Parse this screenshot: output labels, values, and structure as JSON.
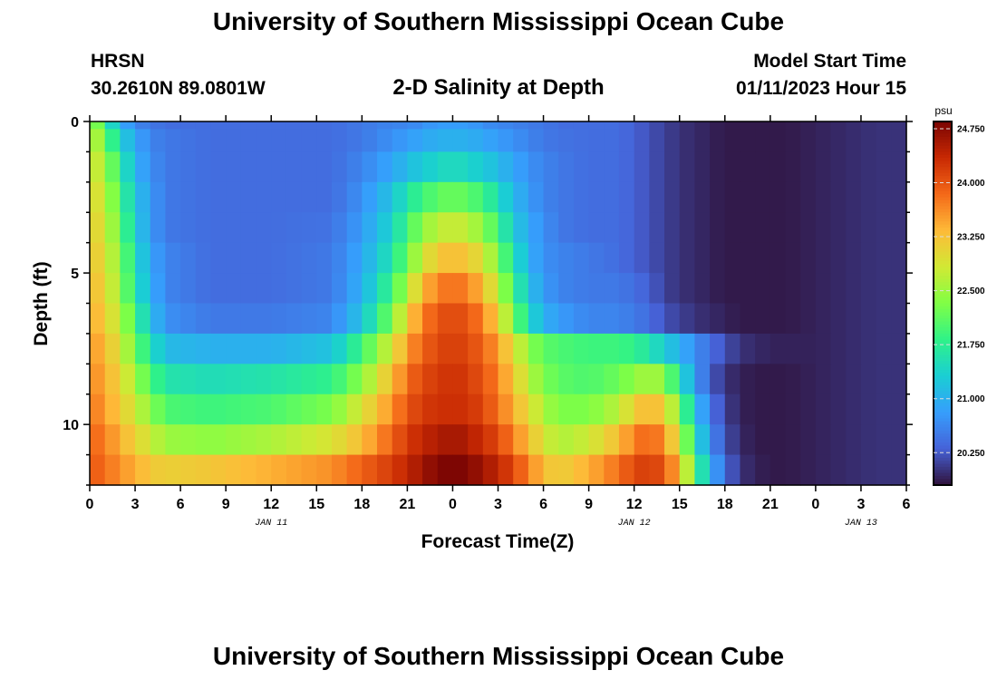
{
  "header": {
    "title": "University of Southern Mississippi Ocean Cube",
    "station": "HRSN",
    "coordinates": "30.2610N  89.0801W",
    "subtitle": "2-D Salinity at Depth",
    "model_start_label": "Model Start Time",
    "model_start_value": "01/11/2023 Hour 15"
  },
  "footer": {
    "title": "University of Southern Mississippi Ocean Cube"
  },
  "chart_data": {
    "type": "heatmap",
    "title": "2-D Salinity at Depth",
    "xlabel": "Forecast Time(Z)",
    "ylabel": "Depth (ft)",
    "x_range_hours": [
      0,
      54
    ],
    "x_tick_hours": [
      0,
      3,
      6,
      9,
      12,
      15,
      18,
      21,
      24,
      27,
      30,
      33,
      36,
      39,
      42,
      45,
      48,
      51,
      54
    ],
    "x_tick_labels": [
      "0",
      "3",
      "6",
      "9",
      "12",
      "15",
      "18",
      "21",
      "0",
      "3",
      "6",
      "9",
      "12",
      "15",
      "18",
      "21",
      "0",
      "3",
      "6"
    ],
    "date_labels": [
      {
        "hour": 12,
        "text": "JAN 11"
      },
      {
        "hour": 36,
        "text": "JAN 12"
      },
      {
        "hour": 51,
        "text": "JAN 13"
      }
    ],
    "y_range_ft": [
      0,
      12
    ],
    "y_ticks": [
      0,
      5,
      10
    ],
    "y_tick_labels": [
      "0",
      "5",
      "10"
    ],
    "colorbar": {
      "unit": "psu",
      "min": 19.8,
      "max": 24.85,
      "ticks": [
        20.25,
        21.0,
        21.75,
        22.5,
        23.25,
        24.0,
        24.75
      ],
      "tick_labels": [
        "20.250",
        "21.000",
        "21.750",
        "22.500",
        "23.250",
        "24.000",
        "24.750"
      ]
    },
    "depth_levels_ft": [
      0,
      0.5,
      1.5,
      2.5,
      3.5,
      4.5,
      5.5,
      6.5,
      7.5,
      8.5,
      9.5,
      10.5,
      11.5
    ],
    "salinity_keyframes": {
      "hours": [
        0,
        1,
        2,
        3,
        4,
        5,
        8,
        12,
        16,
        18,
        20,
        21,
        22,
        23,
        24,
        25,
        26,
        27,
        28,
        29,
        30,
        31,
        33,
        35,
        36,
        37,
        38,
        39,
        40,
        41,
        42,
        43,
        44,
        45,
        46,
        48,
        50,
        52,
        54
      ],
      "levels": [
        [
          22.7,
          21.8,
          21.0,
          20.6,
          20.5,
          20.4,
          20.4,
          20.4,
          20.4,
          20.5,
          20.6,
          20.6,
          20.7,
          20.8,
          20.8,
          20.8,
          20.7,
          20.6,
          20.6,
          20.5,
          20.5,
          20.4,
          20.4,
          20.4,
          20.3,
          20.2,
          20.1,
          20.0,
          19.95,
          19.9,
          19.85,
          19.85,
          19.85,
          19.85,
          19.85,
          19.9,
          19.95,
          20.0,
          20.0
        ],
        [
          22.9,
          22.2,
          21.4,
          20.9,
          20.6,
          20.5,
          20.4,
          20.4,
          20.4,
          20.5,
          20.7,
          20.8,
          20.9,
          21.0,
          21.0,
          21.0,
          20.9,
          20.8,
          20.7,
          20.6,
          20.5,
          20.45,
          20.4,
          20.4,
          20.3,
          20.2,
          20.1,
          20.0,
          19.95,
          19.9,
          19.85,
          19.85,
          19.85,
          19.85,
          19.85,
          19.9,
          19.95,
          20.0,
          20.0
        ],
        [
          23.0,
          22.5,
          21.8,
          21.0,
          20.7,
          20.5,
          20.4,
          20.4,
          20.4,
          20.6,
          20.9,
          21.1,
          21.3,
          21.4,
          21.5,
          21.4,
          21.3,
          21.1,
          20.9,
          20.7,
          20.6,
          20.5,
          20.4,
          20.4,
          20.3,
          20.2,
          20.1,
          20.0,
          19.95,
          19.9,
          19.85,
          19.85,
          19.85,
          19.85,
          19.85,
          19.9,
          19.95,
          20.0,
          20.0
        ],
        [
          23.1,
          22.7,
          22.0,
          21.2,
          20.8,
          20.5,
          20.4,
          20.4,
          20.4,
          20.7,
          21.2,
          21.6,
          21.9,
          22.1,
          22.2,
          22.1,
          21.9,
          21.5,
          21.1,
          20.8,
          20.6,
          20.5,
          20.4,
          20.4,
          20.3,
          20.2,
          20.1,
          20.0,
          19.95,
          19.9,
          19.85,
          19.85,
          19.85,
          19.85,
          19.85,
          19.9,
          19.95,
          20.0,
          20.0
        ],
        [
          23.2,
          22.8,
          22.2,
          21.3,
          20.8,
          20.5,
          20.4,
          20.4,
          20.45,
          20.8,
          21.4,
          21.9,
          22.4,
          22.7,
          22.8,
          22.7,
          22.4,
          21.9,
          21.3,
          20.9,
          20.7,
          20.5,
          20.4,
          20.4,
          20.3,
          20.2,
          20.1,
          20.0,
          19.95,
          19.9,
          19.85,
          19.85,
          19.85,
          19.85,
          19.85,
          19.9,
          19.95,
          20.0,
          20.0
        ],
        [
          23.3,
          22.9,
          22.4,
          21.5,
          20.9,
          20.6,
          20.4,
          20.4,
          20.5,
          20.9,
          21.6,
          22.2,
          22.8,
          23.2,
          23.3,
          23.2,
          22.9,
          22.3,
          21.6,
          21.0,
          20.7,
          20.6,
          20.5,
          20.4,
          20.3,
          20.2,
          20.1,
          20.0,
          19.95,
          19.9,
          19.85,
          19.85,
          19.85,
          19.85,
          19.85,
          19.9,
          19.95,
          20.0,
          20.0
        ],
        [
          23.4,
          23.0,
          22.5,
          21.6,
          21.0,
          20.6,
          20.4,
          20.4,
          20.5,
          21.0,
          21.9,
          22.6,
          23.3,
          23.7,
          23.8,
          23.7,
          23.3,
          22.7,
          21.9,
          21.2,
          20.8,
          20.6,
          20.5,
          20.5,
          20.4,
          20.3,
          20.1,
          20.0,
          19.95,
          19.9,
          19.85,
          19.85,
          19.85,
          19.85,
          19.85,
          19.9,
          19.95,
          20.0,
          20.0
        ],
        [
          23.5,
          23.1,
          22.7,
          21.9,
          21.2,
          20.7,
          20.5,
          20.5,
          20.6,
          21.2,
          22.3,
          23.1,
          23.7,
          24.0,
          24.1,
          24.0,
          23.7,
          23.1,
          22.3,
          21.5,
          21.0,
          20.8,
          20.6,
          20.6,
          20.5,
          20.4,
          20.2,
          20.1,
          20.0,
          19.95,
          19.9,
          19.85,
          19.85,
          19.85,
          19.85,
          19.9,
          19.95,
          20.0,
          20.0
        ],
        [
          23.6,
          23.3,
          22.9,
          22.2,
          21.6,
          21.1,
          21.0,
          21.0,
          21.2,
          21.9,
          22.9,
          23.5,
          23.9,
          24.1,
          24.2,
          24.1,
          23.9,
          23.5,
          23.0,
          22.4,
          22.1,
          22.0,
          21.9,
          21.9,
          21.8,
          21.6,
          21.3,
          21.0,
          20.7,
          20.4,
          20.2,
          20.0,
          19.95,
          19.9,
          19.9,
          19.9,
          19.95,
          20.0,
          20.0
        ],
        [
          23.7,
          23.4,
          23.1,
          22.5,
          22.0,
          21.6,
          21.5,
          21.6,
          21.8,
          22.4,
          23.3,
          23.8,
          24.1,
          24.2,
          24.3,
          24.2,
          24.0,
          23.7,
          23.2,
          22.7,
          22.3,
          22.1,
          22.0,
          22.2,
          22.4,
          22.6,
          22.4,
          21.6,
          20.8,
          20.3,
          20.0,
          19.9,
          19.85,
          19.85,
          19.85,
          19.9,
          19.95,
          20.0,
          20.0
        ],
        [
          23.8,
          23.5,
          23.2,
          22.8,
          22.4,
          22.0,
          21.9,
          22.0,
          22.3,
          22.9,
          23.6,
          24.0,
          24.2,
          24.3,
          24.3,
          24.3,
          24.1,
          23.8,
          23.4,
          23.0,
          22.6,
          22.3,
          22.3,
          22.7,
          23.1,
          23.4,
          23.1,
          22.3,
          21.2,
          20.5,
          20.1,
          19.9,
          19.85,
          19.85,
          19.85,
          19.9,
          19.95,
          20.0,
          20.0
        ],
        [
          23.9,
          23.7,
          23.4,
          23.1,
          22.8,
          22.5,
          22.4,
          22.6,
          22.9,
          23.3,
          23.9,
          24.2,
          24.4,
          24.5,
          24.6,
          24.5,
          24.3,
          24.1,
          23.7,
          23.3,
          22.9,
          22.6,
          22.8,
          23.3,
          23.7,
          23.9,
          23.6,
          22.8,
          21.6,
          20.7,
          20.2,
          19.95,
          19.85,
          19.85,
          19.85,
          19.9,
          19.95,
          20.0,
          20.0
        ],
        [
          24.0,
          23.8,
          23.6,
          23.4,
          23.2,
          23.1,
          23.2,
          23.4,
          23.6,
          23.9,
          24.2,
          24.4,
          24.6,
          24.8,
          24.85,
          24.8,
          24.6,
          24.4,
          24.1,
          23.7,
          23.3,
          23.1,
          23.4,
          23.8,
          24.1,
          24.2,
          24.0,
          23.3,
          22.1,
          21.0,
          20.4,
          20.0,
          19.9,
          19.85,
          19.85,
          19.9,
          19.95,
          20.0,
          20.0
        ]
      ]
    }
  }
}
